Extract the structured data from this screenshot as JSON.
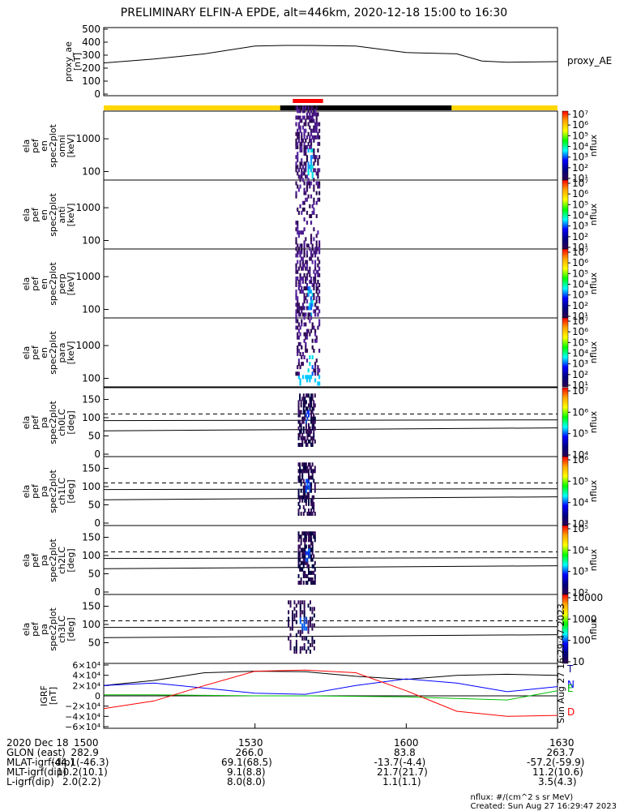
{
  "title": "PRELIMINARY ELFIN-A EPDE, alt=446km, 2020-12-18 15:00 to 16:30",
  "proxy_ae": {
    "ylabel": "proxy_ae\n[nT]",
    "right_label": "proxy_AE",
    "yticks": [
      "0",
      "100",
      "200",
      "300",
      "400",
      "500"
    ]
  },
  "panels": [
    {
      "ylabel": "ela\npef\nen\nspec2plot\nomni\n[keV]",
      "yticks": [
        "100",
        "1000"
      ],
      "cbar_ticks": [
        "10¹",
        "10²",
        "10³",
        "10⁴",
        "10⁵",
        "10⁶",
        "10⁷"
      ],
      "cbar_label": "nflux"
    },
    {
      "ylabel": "ela\npef\nen\nspec2plot\nanti\n[keV]",
      "yticks": [
        "100",
        "1000"
      ],
      "cbar_ticks": [
        "10¹",
        "10²",
        "10³",
        "10⁴",
        "10⁵",
        "10⁶",
        "10⁷"
      ],
      "cbar_label": "nflux"
    },
    {
      "ylabel": "ela\npef\nen\nspec2plot\nperp\n[keV]",
      "yticks": [
        "100",
        "1000"
      ],
      "cbar_ticks": [
        "10¹",
        "10²",
        "10³",
        "10⁴",
        "10⁵",
        "10⁶",
        "10⁷"
      ],
      "cbar_label": "nflux"
    },
    {
      "ylabel": "ela\npef\nen\nspec2plot\npara\n[keV]",
      "yticks": [
        "100",
        "1000"
      ],
      "cbar_ticks": [
        "10¹",
        "10²",
        "10³",
        "10⁴",
        "10⁵",
        "10⁶",
        "10⁷"
      ],
      "cbar_label": "nflux"
    },
    {
      "ylabel": "ela\npef\npa\nspec2plot\nch0LC\n[deg]",
      "yticks": [
        "0",
        "50",
        "100",
        "150"
      ],
      "cbar_ticks": [
        "10⁴",
        "10⁵",
        "10⁶",
        "10⁷"
      ],
      "cbar_label": "nflux"
    },
    {
      "ylabel": "ela\npef\npa\nspec2plot\nch1LC\n[deg]",
      "yticks": [
        "0",
        "50",
        "100",
        "150"
      ],
      "cbar_ticks": [
        "10³",
        "10⁴",
        "10⁵",
        "10⁶"
      ],
      "cbar_label": "nflux"
    },
    {
      "ylabel": "ela\npef\npa\nspec2plot\nch2LC\n[deg]",
      "yticks": [
        "0",
        "50",
        "100",
        "150"
      ],
      "cbar_ticks": [
        "10²",
        "10³",
        "10⁴",
        "10⁵"
      ],
      "cbar_label": "nflux"
    },
    {
      "ylabel": "ela\npef\npa\nspec2plot\nch3LC\n[deg]",
      "yticks": [
        "50",
        "100",
        "150"
      ],
      "cbar_ticks": [
        "10",
        "100",
        "1000",
        "10000"
      ],
      "cbar_label": "nflux"
    }
  ],
  "igrf": {
    "ylabel": "IGRF\n[nT]",
    "yticks": [
      "−6×10⁴",
      "−4×10⁴",
      "−2×10⁴",
      "0",
      "2×10⁴",
      "4×10⁴",
      "6×10⁴"
    ],
    "legend": [
      {
        "label": "T",
        "color": "#000080"
      },
      {
        "label": "N",
        "color": "#0000ff"
      },
      {
        "label": "E",
        "color": "#00c000"
      },
      {
        "label": "D",
        "color": "#ff0000"
      }
    ],
    "side_text": "Sun Aug 27 16:29:47 2023"
  },
  "chart_data": [
    {
      "type": "line",
      "title": "PRELIMINARY ELFIN-A EPDE, alt=446km, 2020-12-18 15:00 to 16:30",
      "ylabel": "proxy_ae [nT]",
      "ylim": [
        0,
        500
      ],
      "x": [
        "1500",
        "1510",
        "1520",
        "1530",
        "1536",
        "1540",
        "1550",
        "1600",
        "1610",
        "1615",
        "1620",
        "1630"
      ],
      "series": [
        {
          "name": "proxy_AE",
          "values": [
            240,
            270,
            310,
            370,
            375,
            375,
            370,
            320,
            310,
            255,
            245,
            250
          ]
        }
      ]
    },
    {
      "type": "line",
      "title": "IGRF",
      "ylabel": "IGRF [nT]",
      "ylim": [
        -60000,
        60000
      ],
      "x": [
        "1500",
        "1510",
        "1520",
        "1530",
        "1540",
        "1550",
        "1600",
        "1610",
        "1620",
        "1630"
      ],
      "series": [
        {
          "name": "T",
          "values": [
            20000,
            30000,
            45000,
            48000,
            47000,
            38000,
            32000,
            40000,
            42000,
            40000
          ]
        },
        {
          "name": "N",
          "values": [
            20000,
            25000,
            15000,
            5000,
            3000,
            20000,
            33000,
            25000,
            8000,
            18000
          ]
        },
        {
          "name": "E",
          "values": [
            2000,
            2000,
            1000,
            0,
            0,
            -1000,
            -2000,
            -5000,
            -8000,
            10000
          ]
        },
        {
          "name": "D",
          "values": [
            -25000,
            -10000,
            20000,
            48000,
            50000,
            45000,
            10000,
            -30000,
            -40000,
            -38000
          ]
        }
      ]
    }
  ],
  "footer": {
    "rows": [
      {
        "label": "2020 Dec 18",
        "vals": [
          "1500",
          "1530",
          "1600",
          "1630"
        ]
      },
      {
        "label": "GLON (east)",
        "vals": [
          "282.9",
          "266.0",
          "83.8",
          "263.7"
        ]
      },
      {
        "label": "MLAT-igrf(dip)",
        "vals": [
          "-44.1(-46.3)",
          "69.1(68.5)",
          "-13.7(-4.4)",
          "-57.2(-59.9)"
        ]
      },
      {
        "label": "MLT-igrf(dip)",
        "vals": [
          "10.2(10.1)",
          "9.1(8.8)",
          "21.7(21.7)",
          "11.2(10.6)"
        ]
      },
      {
        "label": "L-igrf(dip)",
        "vals": [
          "2.0(2.2)",
          "8.0(8.0)",
          "1.1(1.1)",
          "3.5(4.3)"
        ]
      }
    ]
  },
  "credits": {
    "line1": "nflux: #/(cm^2 s sr MeV)",
    "line2": "Created: Sun Aug 27 16:29:47 2023"
  }
}
